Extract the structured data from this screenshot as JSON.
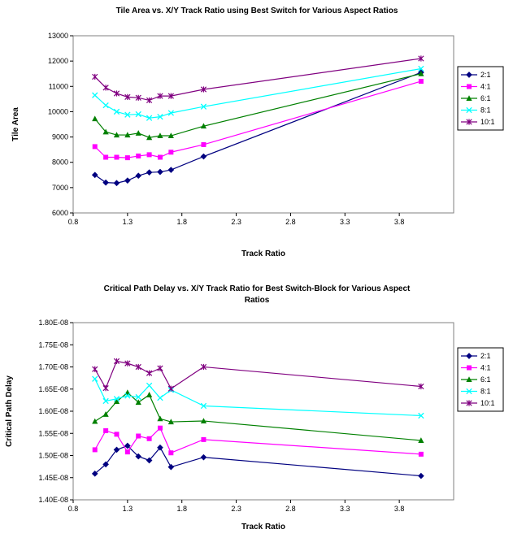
{
  "chart_data": [
    {
      "type": "line",
      "title": "Tile Area vs. X/Y Track Ratio using Best Switch for Various Aspect Ratios",
      "title_lines": [
        "Tile Area vs. X/Y Track Ratio using Best Switch for Various Aspect Ratios"
      ],
      "xlabel": "Track Ratio",
      "ylabel": "Tile Area",
      "xlim": [
        0.8,
        4.3
      ],
      "ylim": [
        6000,
        13000
      ],
      "xticks": [
        0.8,
        1.3,
        1.8,
        2.3,
        2.8,
        3.3,
        3.8
      ],
      "xtick_labels": [
        "0.8",
        "1.3",
        "1.8",
        "2.3",
        "2.8",
        "3.3",
        "3.8"
      ],
      "yticks": [
        6000,
        7000,
        8000,
        9000,
        10000,
        11000,
        12000,
        13000
      ],
      "ytick_labels": [
        "6000",
        "7000",
        "8000",
        "9000",
        "10000",
        "11000",
        "12000",
        "13000"
      ],
      "grid": false,
      "legend_position": "right",
      "x": [
        1.0,
        1.1,
        1.2,
        1.3,
        1.4,
        1.5,
        1.6,
        1.7,
        2.0,
        4.0
      ],
      "series": [
        {
          "name": "2:1",
          "color": "#000080",
          "marker": "diamond",
          "values": [
            7500,
            7200,
            7180,
            7280,
            7470,
            7600,
            7620,
            7700,
            8230,
            11550
          ]
        },
        {
          "name": "4:1",
          "color": "#ff00ff",
          "marker": "square",
          "values": [
            8620,
            8200,
            8200,
            8180,
            8250,
            8300,
            8200,
            8400,
            8700,
            11200
          ]
        },
        {
          "name": "6:1",
          "color": "#008000",
          "marker": "triangle",
          "values": [
            9720,
            9200,
            9080,
            9080,
            9150,
            8980,
            9050,
            9050,
            9430,
            11500
          ]
        },
        {
          "name": "8:1",
          "color": "#00ffff",
          "marker": "x",
          "values": [
            10650,
            10250,
            10000,
            9880,
            9900,
            9750,
            9800,
            9950,
            10200,
            11700
          ]
        },
        {
          "name": "10:1",
          "color": "#800080",
          "marker": "star",
          "values": [
            11380,
            10950,
            10720,
            10580,
            10550,
            10450,
            10620,
            10620,
            10880,
            12100
          ]
        }
      ]
    },
    {
      "type": "line",
      "title": "Critical Path Delay vs. X/Y Track Ratio for Best Switch-Block for Various Aspect Ratios",
      "title_lines": [
        "Critical Path Delay vs. X/Y Track Ratio for Best Switch-Block for Various Aspect",
        "Ratios"
      ],
      "xlabel": "Track Ratio",
      "ylabel": "Critical Path Delay",
      "xlim": [
        0.8,
        4.3
      ],
      "ylim": [
        1.4e-08,
        1.8e-08
      ],
      "xticks": [
        0.8,
        1.3,
        1.8,
        2.3,
        2.8,
        3.3,
        3.8
      ],
      "xtick_labels": [
        "0.8",
        "1.3",
        "1.8",
        "2.3",
        "2.8",
        "3.3",
        "3.8"
      ],
      "yticks": [
        1.4e-08,
        1.45e-08,
        1.5e-08,
        1.55e-08,
        1.6e-08,
        1.65e-08,
        1.7e-08,
        1.75e-08,
        1.8e-08
      ],
      "ytick_labels": [
        "1.40E-08",
        "1.45E-08",
        "1.50E-08",
        "1.55E-08",
        "1.60E-08",
        "1.65E-08",
        "1.70E-08",
        "1.75E-08",
        "1.80E-08"
      ],
      "grid": false,
      "legend_position": "right",
      "x": [
        1.0,
        1.1,
        1.2,
        1.3,
        1.4,
        1.5,
        1.6,
        1.7,
        2.0,
        4.0
      ],
      "series": [
        {
          "name": "2:1",
          "color": "#000080",
          "marker": "diamond",
          "values": [
            1.459e-08,
            1.48e-08,
            1.513e-08,
            1.522e-08,
            1.498e-08,
            1.489e-08,
            1.518e-08,
            1.474e-08,
            1.496e-08,
            1.454e-08
          ]
        },
        {
          "name": "4:1",
          "color": "#ff00ff",
          "marker": "square",
          "values": [
            1.513e-08,
            1.556e-08,
            1.548e-08,
            1.508e-08,
            1.544e-08,
            1.538e-08,
            1.562e-08,
            1.506e-08,
            1.536e-08,
            1.503e-08
          ]
        },
        {
          "name": "6:1",
          "color": "#008000",
          "marker": "triangle",
          "values": [
            1.577e-08,
            1.593e-08,
            1.622e-08,
            1.642e-08,
            1.62e-08,
            1.637e-08,
            1.583e-08,
            1.576e-08,
            1.578e-08,
            1.534e-08
          ]
        },
        {
          "name": "8:1",
          "color": "#00ffff",
          "marker": "x",
          "values": [
            1.673e-08,
            1.623e-08,
            1.628e-08,
            1.635e-08,
            1.632e-08,
            1.658e-08,
            1.63e-08,
            1.648e-08,
            1.612e-08,
            1.59e-08
          ]
        },
        {
          "name": "10:1",
          "color": "#800080",
          "marker": "star",
          "values": [
            1.695e-08,
            1.652e-08,
            1.713e-08,
            1.708e-08,
            1.7e-08,
            1.686e-08,
            1.697e-08,
            1.651e-08,
            1.7e-08,
            1.656e-08
          ]
        }
      ]
    }
  ]
}
